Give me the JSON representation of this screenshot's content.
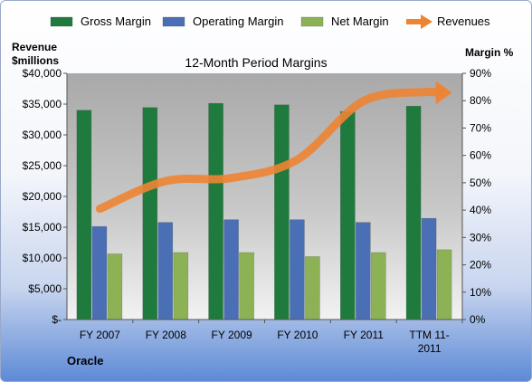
{
  "chart_data": {
    "type": "bar",
    "title": "12-Month Period Margins",
    "company": "Oracle",
    "left_axis": {
      "label_line1": "Revenue",
      "label_line2": "$millions",
      "ylim": [
        0,
        40000
      ],
      "ticks": [
        "$-",
        "$5,000",
        "$10,000",
        "$15,000",
        "$20,000",
        "$25,000",
        "$30,000",
        "$35,000",
        "$40,000"
      ]
    },
    "right_axis": {
      "label": "Margin %",
      "ylim": [
        0,
        90
      ],
      "ticks": [
        "0%",
        "10%",
        "20%",
        "30%",
        "40%",
        "50%",
        "60%",
        "70%",
        "80%",
        "90%"
      ]
    },
    "categories": [
      [
        "FY 2007"
      ],
      [
        "FY 2008"
      ],
      [
        "FY 2009"
      ],
      [
        "FY 2010"
      ],
      [
        "FY 2011"
      ],
      [
        "TTM 11-",
        "2011"
      ]
    ],
    "series": [
      {
        "name": "Gross Margin",
        "axis": "right",
        "type": "bar",
        "color": "#1f7a3e",
        "values": [
          76.5,
          77.5,
          79,
          78.5,
          76,
          78
        ]
      },
      {
        "name": "Operating Margin",
        "axis": "right",
        "type": "bar",
        "color": "#4a6fb5",
        "values": [
          34,
          35.5,
          36.5,
          36.5,
          35.5,
          37
        ]
      },
      {
        "name": "Net Margin",
        "axis": "right",
        "type": "bar",
        "color": "#8cb255",
        "values": [
          24,
          24.5,
          24.5,
          23,
          24.5,
          25.5
        ]
      },
      {
        "name": "Revenues",
        "axis": "left",
        "type": "line",
        "color": "#ee8433",
        "values": [
          18000,
          22500,
          23000,
          26000,
          35500,
          37000
        ]
      }
    ],
    "legend_position": "top",
    "grid": false
  }
}
